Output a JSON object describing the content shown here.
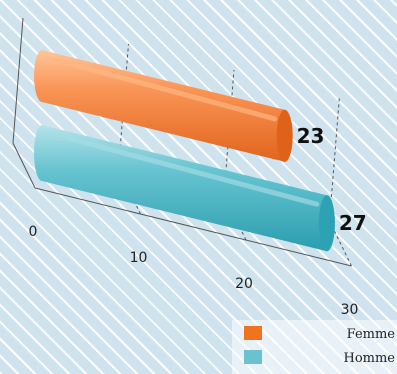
{
  "chart_data": {
    "type": "bar",
    "orientation": "horizontal",
    "style": "3d-cylinder",
    "categories": [
      "Femme",
      "Homme"
    ],
    "values": [
      23,
      27
    ],
    "xlim": [
      0,
      30
    ],
    "ticks": [
      0,
      10,
      20,
      30
    ],
    "grid": true,
    "legend_position": "bottom-right",
    "colors": {
      "Femme": {
        "light": "#ffb985",
        "main": "#f78a45",
        "dark": "#e0621a",
        "swatch": "#ee7420"
      },
      "Homme": {
        "light": "#a6dde6",
        "main": "#5ec0ce",
        "dark": "#2da2b3",
        "swatch": "#6cc1d0"
      }
    },
    "value_labels": [
      "23",
      "27"
    ],
    "title": "",
    "xlabel": "",
    "ylabel": ""
  },
  "legend": {
    "items": [
      {
        "label": "Femme",
        "color": "#ee7420"
      },
      {
        "label": "Homme",
        "color": "#6cc1d0"
      }
    ]
  }
}
